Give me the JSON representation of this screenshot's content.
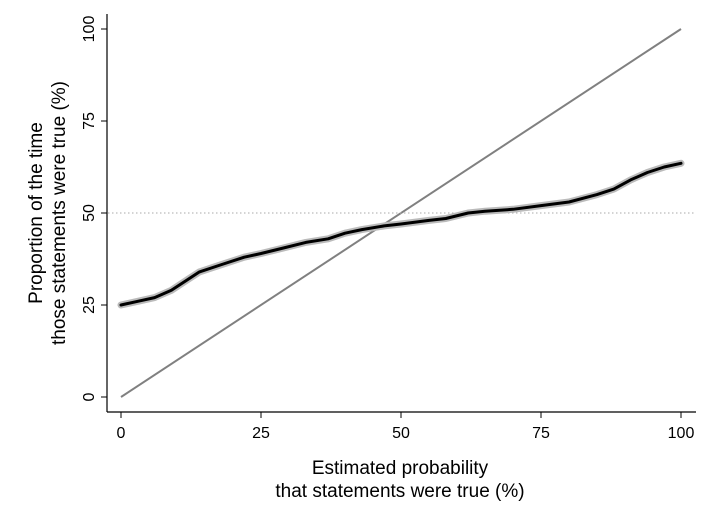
{
  "chart_data": {
    "type": "line",
    "title": "",
    "xlabel_lines": [
      "Estimated probability",
      "that statements were true (%)"
    ],
    "ylabel_lines": [
      "Proportion of the time",
      "those statements were true (%)"
    ],
    "xlim": [
      0,
      100
    ],
    "ylim": [
      0,
      100
    ],
    "xticks": [
      0,
      25,
      50,
      75,
      100
    ],
    "yticks": [
      0,
      25,
      50,
      75,
      100
    ],
    "grid": false,
    "reference_lines": [
      {
        "type": "diagonal",
        "from": [
          0,
          0
        ],
        "to": [
          100,
          100
        ],
        "color": "#808080"
      },
      {
        "type": "horizontal",
        "y": 50,
        "style": "dotted",
        "color": "#aaaaaa"
      }
    ],
    "series": [
      {
        "color": "#000000",
        "band_color": "#bbbbbb",
        "x": [
          0,
          3,
          6,
          9,
          12,
          14,
          18,
          22,
          25,
          29,
          33,
          37,
          40,
          43,
          47,
          50,
          55,
          58,
          62,
          65,
          70,
          75,
          80,
          85,
          88,
          91,
          94,
          97,
          100
        ],
        "y": [
          25,
          26,
          27,
          29,
          32,
          34,
          36,
          38,
          39,
          40.5,
          42,
          43,
          44.5,
          45.5,
          46.5,
          47,
          48,
          48.5,
          50,
          50.5,
          51,
          52,
          53,
          55,
          56.5,
          59,
          61,
          62.5,
          63.5
        ]
      }
    ]
  }
}
